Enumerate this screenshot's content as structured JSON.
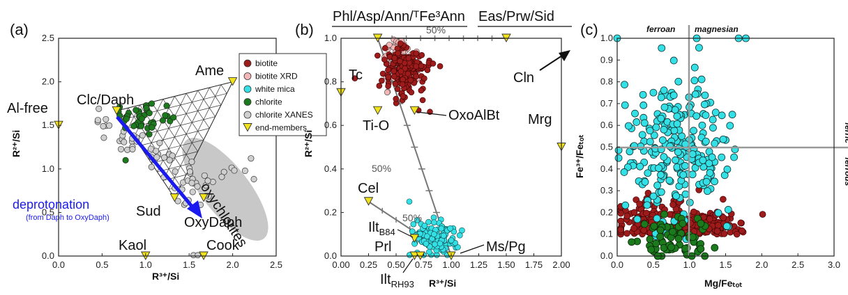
{
  "panels": {
    "a": {
      "label": "(a)",
      "xlabel": "R³⁺/Si",
      "ylabel": "R²⁺/Si",
      "xticks": [
        "0.0",
        "0.5",
        "1.0",
        "1.5",
        "2.0",
        "2.5"
      ],
      "yticks": [
        "0.0",
        "0.5",
        "1.0",
        "1.5",
        "2.0",
        "2.5"
      ],
      "end_members": [
        {
          "label": "Al-free",
          "x": 0.0,
          "y": 1.5
        },
        {
          "label": "Clc/Daph",
          "x": 0.667,
          "y": 1.667
        },
        {
          "label": "Ame",
          "x": 2.0,
          "y": 2.0
        },
        {
          "label": "Sud",
          "x": 1.333,
          "y": 0.667
        },
        {
          "label": "OxyDaph",
          "x": 1.667,
          "y": 0.667
        },
        {
          "label": "Kaol",
          "x": 1.0,
          "y": 0.0
        },
        {
          "label": "Cook",
          "x": 1.667,
          "y": 0.0
        }
      ],
      "oxychlorites_label": "oxychlorites",
      "arrow_label": "deprotonation",
      "arrow_sublabel": "(from Daph to OxyDaph)",
      "legend": [
        {
          "label": "biotite",
          "color": "#9e1b1b"
        },
        {
          "label": "biotite XRD",
          "color": "#f4b6b6"
        },
        {
          "label": "white mica",
          "color": "#33e0e6"
        },
        {
          "label": "chlorite",
          "color": "#1b7a1b"
        },
        {
          "label": "chlorite XANES",
          "color": "#cfcfcf"
        },
        {
          "label": "end-members",
          "color": "#f2e21b"
        }
      ]
    },
    "b": {
      "label": "(b)",
      "xlabel": "R³⁺/Si",
      "ylabel": "R²⁺/Si",
      "xticks": [
        "0.00",
        "0.25",
        "0.50",
        "0.75",
        "1.00",
        "1.25",
        "1.50",
        "1.75",
        "2.00"
      ],
      "yticks": [
        "0.0",
        "0.2",
        "0.4",
        "0.6",
        "0.8",
        "1.0"
      ],
      "top_labels": [
        "Phl/Asp/Ann/ᵀFe³Ann",
        "Eas/Prw/Sid"
      ],
      "pct_labels": [
        "50%",
        "50%",
        "50%"
      ],
      "end_members": [
        {
          "label": "Tc",
          "x": 0.0,
          "y": 0.75
        },
        {
          "label": "Ti-O",
          "x": 0.333,
          "y": 0.667
        },
        {
          "label": "OxoAlBt",
          "x": 0.667,
          "y": 0.667
        },
        {
          "label": "Mrg",
          "x": 2.0,
          "y": 0.5
        },
        {
          "label": "Cel",
          "x": 0.25,
          "y": 0.25
        },
        {
          "label": "Ilt",
          "sub": "B84",
          "x": 0.667,
          "y": 0.08
        },
        {
          "label": "Prl",
          "x": 0.667,
          "y": 0.0
        },
        {
          "label": "Ilt",
          "sub": "RH93",
          "x": 0.72,
          "y": 0.0
        },
        {
          "label": "Ms/Pg",
          "x": 1.0,
          "y": 0.0
        },
        {
          "label": "Cln",
          "x": 2.0,
          "y": 1.0
        }
      ]
    },
    "c": {
      "label": "(c)",
      "xlabel": "Mg/Feₜₒₜ",
      "ylabel": "Fe³⁺/Feₜₒₜ",
      "xticks": [
        "0.0",
        "0.5",
        "1.0",
        "1.5",
        "2.0",
        "2.5",
        "3.0"
      ],
      "yticks": [
        "0.0",
        "0.1",
        "0.2",
        "0.3",
        "0.4",
        "0.5",
        "0.6",
        "0.7",
        "0.8",
        "0.9",
        "1.0"
      ],
      "region_labels": {
        "ferroan": "ferroan",
        "magnesian": "magnesian",
        "ferric": "ferric",
        "ferrous": "ferrous"
      }
    }
  },
  "chart_data": [
    {
      "type": "scatter",
      "panel": "a",
      "xlim": [
        0,
        2.5
      ],
      "ylim": [
        0,
        2.5
      ],
      "series": [
        {
          "name": "chlorite",
          "centroid": [
            0.95,
            1.55
          ],
          "n": 40
        },
        {
          "name": "chlorite XANES",
          "centroid": [
            1.3,
            1.1
          ],
          "n": 70
        }
      ]
    },
    {
      "type": "scatter",
      "panel": "b",
      "xlim": [
        0,
        2
      ],
      "ylim": [
        0,
        1
      ],
      "series": [
        {
          "name": "biotite",
          "centroid": [
            0.55,
            0.85
          ],
          "n": 180
        },
        {
          "name": "biotite XRD",
          "centroid": [
            0.35,
            0.88
          ],
          "n": 90
        },
        {
          "name": "white mica",
          "centroid": [
            0.9,
            0.08
          ],
          "n": 120
        }
      ]
    },
    {
      "type": "scatter",
      "panel": "c",
      "xlim": [
        0,
        3
      ],
      "ylim": [
        0,
        1
      ],
      "series": [
        {
          "name": "white mica",
          "centroid": [
            0.9,
            0.55
          ],
          "n": 230
        },
        {
          "name": "biotite",
          "centroid": [
            0.9,
            0.1
          ],
          "n": 320
        },
        {
          "name": "chlorite",
          "centroid": [
            0.8,
            0.1
          ],
          "n": 70
        }
      ]
    }
  ]
}
